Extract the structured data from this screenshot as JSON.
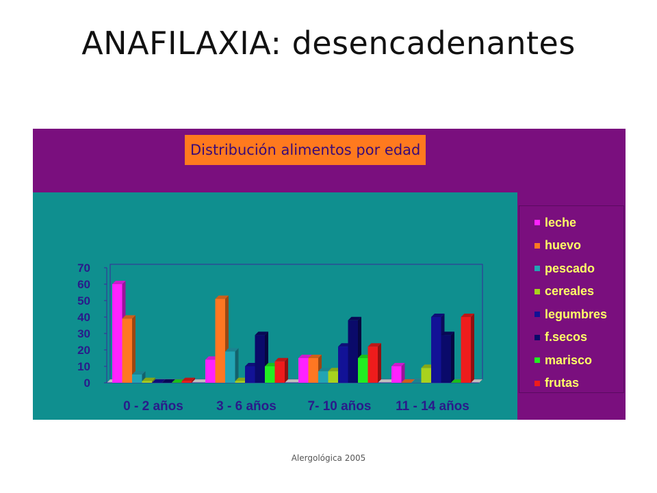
{
  "slide": {
    "title": "ANAFILAXIA: desencadenantes",
    "footer": "Alergológica 2005"
  },
  "colors": {
    "frame_background": "#7a0f7e",
    "plot_background": "#0f8f8f",
    "title_box_background": "#ff7a1e",
    "title_text": "#3a0a78",
    "axis_text": "#2a1a8a",
    "legend_text": "#ffff66"
  },
  "chart_data": {
    "type": "bar",
    "style": "3d-clustered",
    "title": "Distribución alimentos por edad",
    "xlabel": "",
    "ylabel": "",
    "ylim": [
      0,
      70
    ],
    "yticks": [
      0,
      10,
      20,
      30,
      40,
      50,
      60,
      70
    ],
    "grid": false,
    "legend_position": "right",
    "categories": [
      "0 - 2 años",
      "3 - 6 años",
      "7- 10 años",
      "11 - 14 años"
    ],
    "series": [
      {
        "name": "leche",
        "color": "#ff22ff",
        "values": [
          60,
          14,
          15,
          10
        ]
      },
      {
        "name": "huevo",
        "color": "#ff7722",
        "values": [
          39,
          51,
          15,
          0
        ]
      },
      {
        "name": "pescado",
        "color": "#22a4b4",
        "values": [
          5,
          19,
          7,
          0
        ]
      },
      {
        "name": "cereales",
        "color": "#a8d21e",
        "values": [
          1,
          1,
          7,
          9
        ]
      },
      {
        "name": "legumbres",
        "color": "#121296",
        "values": [
          0,
          10,
          22,
          40
        ]
      },
      {
        "name": "f.secos",
        "color": "#0a0a6a",
        "values": [
          0,
          29,
          38,
          29
        ]
      },
      {
        "name": "marisco",
        "color": "#22ee22",
        "values": [
          0,
          10,
          15,
          0
        ]
      },
      {
        "name": "frutas",
        "color": "#ee1c1c",
        "values": [
          1,
          13,
          22,
          40
        ]
      }
    ]
  }
}
